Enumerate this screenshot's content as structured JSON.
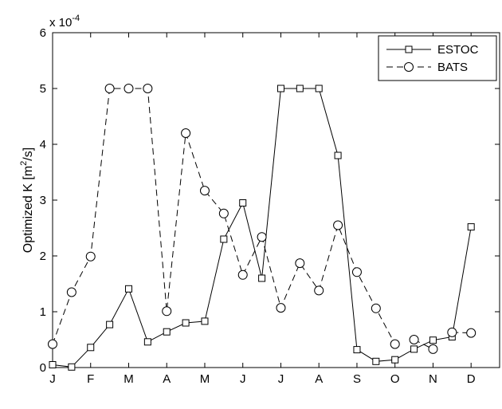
{
  "chart_data": {
    "type": "line",
    "title": "",
    "xlabel": "",
    "ylabel": "Optimized K [m²/s]",
    "ylabel_parts": {
      "main": "Optimized K [m",
      "sup": "2",
      "end": "/s]"
    },
    "y_exponent": {
      "base": "x 10",
      "power": "-4"
    },
    "xlim": [
      0,
      23.5
    ],
    "ylim": [
      0,
      6
    ],
    "x_ticks": [
      {
        "pos": 0,
        "label": "J"
      },
      {
        "pos": 2,
        "label": "F"
      },
      {
        "pos": 4,
        "label": "M"
      },
      {
        "pos": 6,
        "label": "A"
      },
      {
        "pos": 8,
        "label": "M"
      },
      {
        "pos": 10,
        "label": "J"
      },
      {
        "pos": 12,
        "label": "J"
      },
      {
        "pos": 14,
        "label": "A"
      },
      {
        "pos": 16,
        "label": "S"
      },
      {
        "pos": 18,
        "label": "O"
      },
      {
        "pos": 20,
        "label": "N"
      },
      {
        "pos": 22,
        "label": "D"
      }
    ],
    "y_ticks": [
      {
        "pos": 0,
        "label": "0"
      },
      {
        "pos": 1,
        "label": "1"
      },
      {
        "pos": 2,
        "label": "2"
      },
      {
        "pos": 3,
        "label": "3"
      },
      {
        "pos": 4,
        "label": "4"
      },
      {
        "pos": 5,
        "label": "5"
      },
      {
        "pos": 6,
        "label": "6"
      }
    ],
    "legend_position": "top-right",
    "grid": false,
    "series": [
      {
        "name": "ESTOC",
        "marker": "square",
        "line_style": "solid",
        "color": "#000000",
        "segments": [
          [
            {
              "x": 0,
              "y": 0.05
            },
            {
              "x": 1,
              "y": 0.01
            },
            {
              "x": 2,
              "y": 0.36
            },
            {
              "x": 3,
              "y": 0.77
            },
            {
              "x": 4,
              "y": 1.41
            },
            {
              "x": 5,
              "y": 0.46
            },
            {
              "x": 6,
              "y": 0.64
            },
            {
              "x": 7,
              "y": 0.8
            },
            {
              "x": 8,
              "y": 0.83
            },
            {
              "x": 9,
              "y": 2.3
            },
            {
              "x": 10,
              "y": 2.95
            },
            {
              "x": 11,
              "y": 1.6
            },
            {
              "x": 12,
              "y": 5.0
            },
            {
              "x": 13,
              "y": 5.0
            },
            {
              "x": 14,
              "y": 5.0
            },
            {
              "x": 15,
              "y": 3.8
            },
            {
              "x": 16,
              "y": 0.32
            },
            {
              "x": 17,
              "y": 0.11
            },
            {
              "x": 18,
              "y": 0.14
            },
            {
              "x": 19,
              "y": 0.33
            },
            {
              "x": 20,
              "y": 0.49
            },
            {
              "x": 21,
              "y": 0.55
            },
            {
              "x": 22,
              "y": 2.52
            }
          ]
        ]
      },
      {
        "name": "BATS",
        "marker": "circle-dash",
        "line_style": "dashed",
        "color": "#000000",
        "segments": [
          [
            {
              "x": 0,
              "y": 0.42
            },
            {
              "x": 1,
              "y": 1.35
            },
            {
              "x": 2,
              "y": 1.99
            },
            {
              "x": 3,
              "y": 5.0
            },
            {
              "x": 4,
              "y": 5.0
            },
            {
              "x": 5,
              "y": 5.0
            },
            {
              "x": 6,
              "y": 1.01
            },
            {
              "x": 7,
              "y": 4.2
            },
            {
              "x": 8,
              "y": 3.17
            },
            {
              "x": 9,
              "y": 2.76
            },
            {
              "x": 10,
              "y": 1.66
            },
            {
              "x": 11,
              "y": 2.34
            },
            {
              "x": 12,
              "y": 1.07
            },
            {
              "x": 13,
              "y": 1.87
            },
            {
              "x": 14,
              "y": 1.38
            },
            {
              "x": 15,
              "y": 2.55
            },
            {
              "x": 16,
              "y": 1.71
            },
            {
              "x": 17,
              "y": 1.06
            },
            {
              "x": 18,
              "y": 0.42
            }
          ],
          [
            {
              "x": 19,
              "y": 0.5
            },
            {
              "x": 20,
              "y": 0.33
            }
          ],
          [
            {
              "x": 21,
              "y": 0.63
            },
            {
              "x": 22,
              "y": 0.62
            }
          ]
        ]
      }
    ]
  }
}
